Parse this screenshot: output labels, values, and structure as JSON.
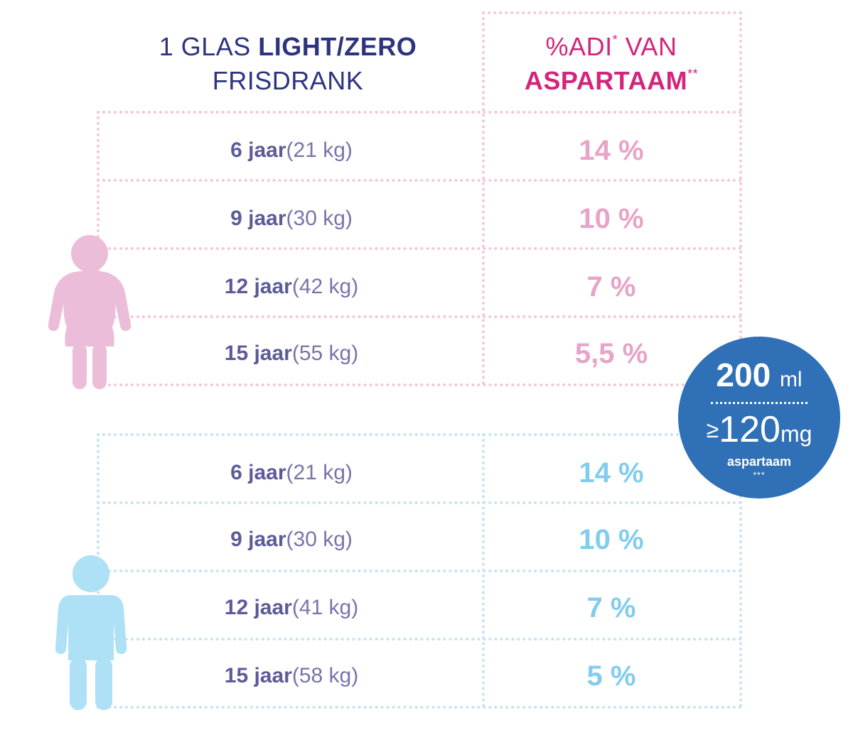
{
  "header": {
    "left_line1_plain": "1 GLAS ",
    "left_line1_bold": "LIGHT/ZERO",
    "left_line2": "FRISDRANK",
    "right_line1": "%ADI",
    "right_line1_mark": "*",
    "right_line1_rest": " VAN",
    "right_line2": "ASPARTAAM",
    "right_line2_mark": "**"
  },
  "girls": {
    "icon": "girl-figure-icon",
    "color": "#e8a3c8",
    "rows": [
      {
        "age": "6 jaar",
        "weight": "(21 kg)",
        "adi": "14 %"
      },
      {
        "age": "9 jaar",
        "weight": "(30 kg)",
        "adi": "10 %"
      },
      {
        "age": "12 jaar",
        "weight": "(42 kg)",
        "adi": "7 %"
      },
      {
        "age": "15 jaar",
        "weight": "(55 kg)",
        "adi": "5,5 %"
      }
    ]
  },
  "boys": {
    "icon": "boy-figure-icon",
    "color": "#82cdee",
    "rows": [
      {
        "age": "6 jaar",
        "weight": "(21 kg)",
        "adi": "14 %"
      },
      {
        "age": "9 jaar",
        "weight": "(30 kg)",
        "adi": "10 %"
      },
      {
        "age": "12 jaar",
        "weight": "(41 kg)",
        "adi": "7 %"
      },
      {
        "age": "15 jaar",
        "weight": "(58 kg)",
        "adi": "5 %"
      }
    ]
  },
  "badge": {
    "color": "#2f70b6",
    "volume": "200",
    "volume_unit": "ml",
    "ge_symbol": "≥",
    "amount": "120",
    "amount_unit": "mg",
    "substance": "aspartaam",
    "mark": "***"
  }
}
